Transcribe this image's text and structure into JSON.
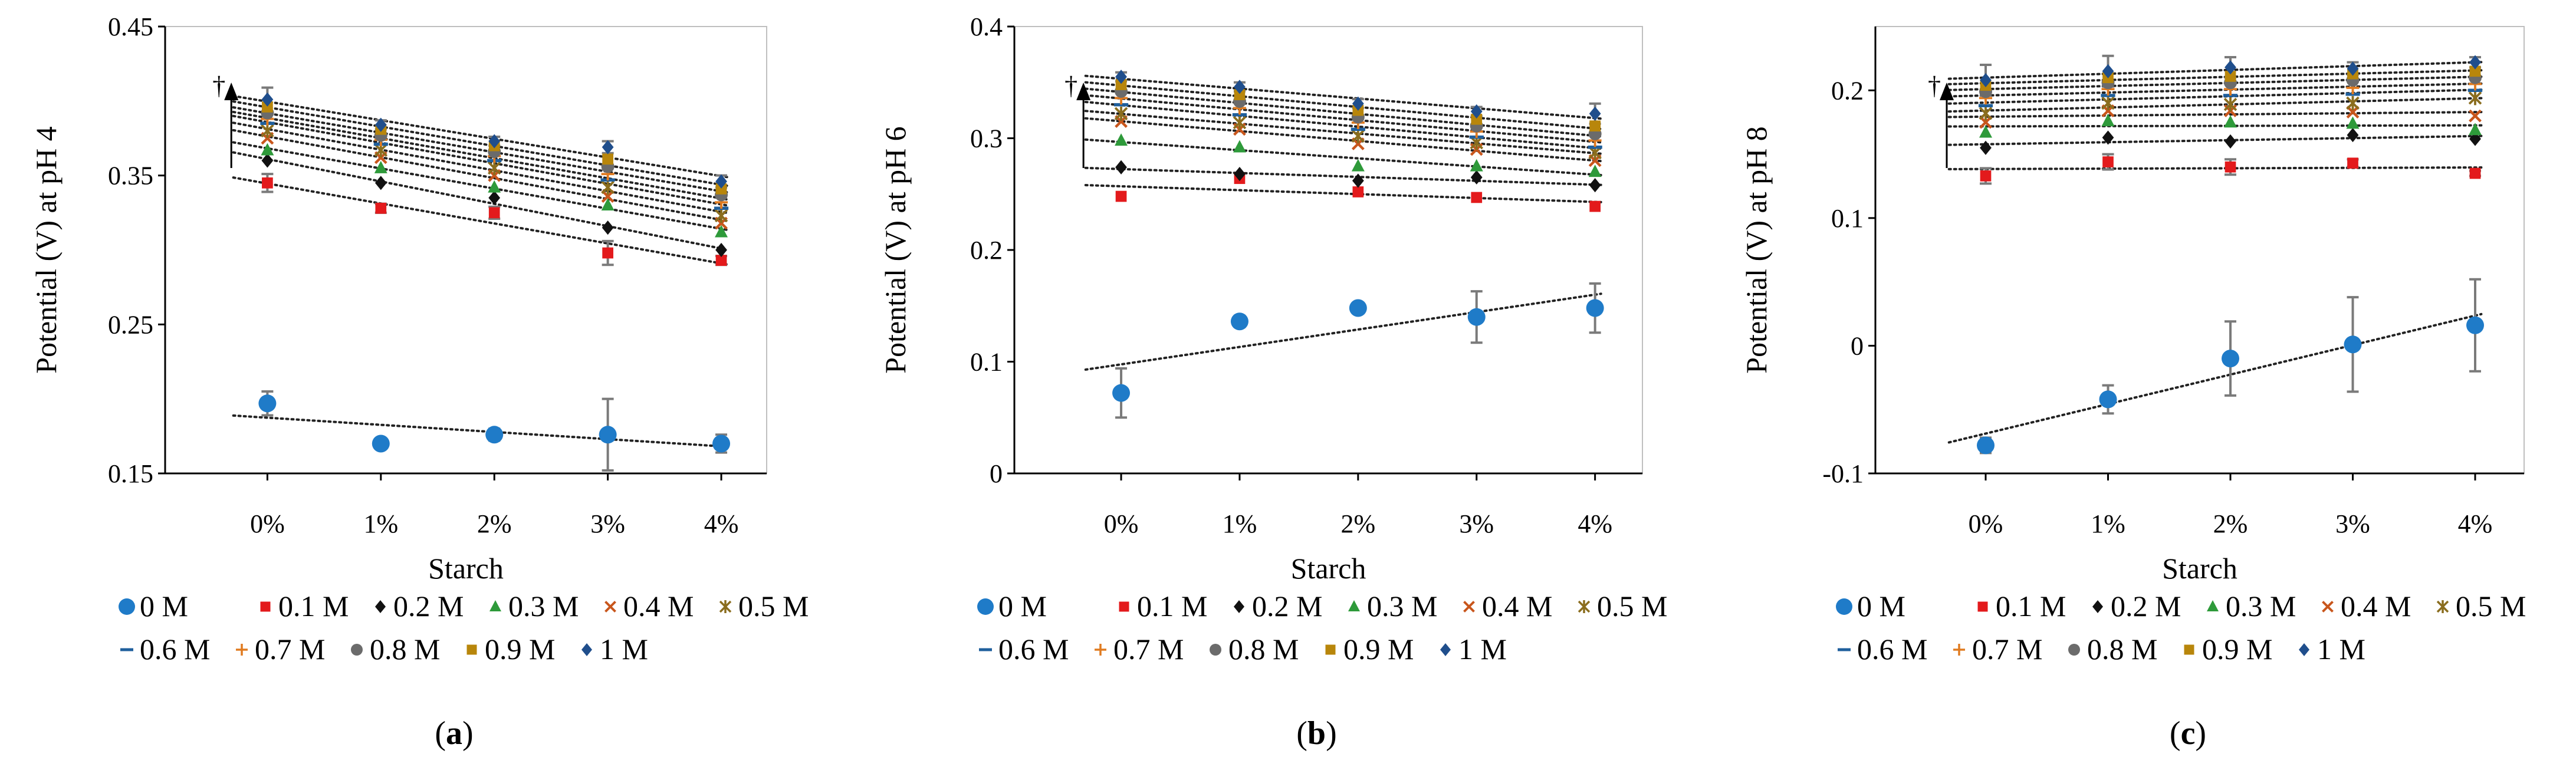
{
  "figure": {
    "legend_labels": [
      "0 M",
      "0.1 M",
      "0.2 M",
      "0.3 M",
      "0.4 M",
      "0.5 M",
      "0.6 M",
      "0.7 M",
      "0.8 M",
      "0.9 M",
      "1 M"
    ],
    "dagger": "†"
  },
  "series_style": [
    {
      "name": "0 M",
      "color": "#1f7bc8",
      "marker": "circle"
    },
    {
      "name": "0.1 M",
      "color": "#e31a1c",
      "marker": "square"
    },
    {
      "name": "0.2 M",
      "color": "#111111",
      "marker": "diamond"
    },
    {
      "name": "0.3 M",
      "color": "#2e9a3a",
      "marker": "triangle"
    },
    {
      "name": "0.4 M",
      "color": "#c8561c",
      "marker": "x"
    },
    {
      "name": "0.5 M",
      "color": "#8a6d1e",
      "marker": "star"
    },
    {
      "name": "0.6 M",
      "color": "#1f5f9c",
      "marker": "dash"
    },
    {
      "name": "0.7 M",
      "color": "#e07b20",
      "marker": "plus"
    },
    {
      "name": "0.8 M",
      "color": "#6b6b6b",
      "marker": "circle"
    },
    {
      "name": "0.9 M",
      "color": "#b8860b",
      "marker": "square"
    },
    {
      "name": "1 M",
      "color": "#1f4e8c",
      "marker": "diamond"
    }
  ],
  "chart_data": [
    {
      "type": "scatter",
      "panel": "(a)",
      "caption": {
        "open": "(",
        "letter": "a",
        "close": ")"
      },
      "title": "",
      "xlabel": "Starch",
      "ylabel": "Potential (V) at pH 4",
      "categories": [
        "0%",
        "1%",
        "2%",
        "3%",
        "4%"
      ],
      "ylim": [
        0.15,
        0.45
      ],
      "yticks": [
        0.15,
        0.25,
        0.35,
        0.45
      ],
      "ytick_labels": [
        "0.15",
        "0.25",
        "0.35",
        "0.45"
      ],
      "trendlines": true,
      "series": [
        {
          "name": "0 M",
          "values": [
            0.197,
            0.17,
            0.176,
            0.176,
            0.17
          ],
          "errors": [
            0.008,
            0.003,
            0.004,
            0.024,
            0.006
          ]
        },
        {
          "name": "0.1 M",
          "values": [
            0.345,
            0.328,
            0.325,
            0.298,
            0.293
          ],
          "errors": [
            0.006,
            0.003,
            0.004,
            0.008,
            0.003
          ]
        },
        {
          "name": "0.2 M",
          "values": [
            0.36,
            0.345,
            0.335,
            0.315,
            0.3
          ]
        },
        {
          "name": "0.3 M",
          "values": [
            0.367,
            0.355,
            0.342,
            0.33,
            0.312
          ]
        },
        {
          "name": "0.4 M",
          "values": [
            0.375,
            0.362,
            0.35,
            0.336,
            0.318
          ]
        },
        {
          "name": "0.5 M",
          "values": [
            0.38,
            0.367,
            0.355,
            0.342,
            0.323
          ]
        },
        {
          "name": "0.6 M",
          "values": [
            0.385,
            0.371,
            0.36,
            0.347,
            0.328
          ]
        },
        {
          "name": "0.7 M",
          "values": [
            0.388,
            0.374,
            0.363,
            0.351,
            0.332
          ]
        },
        {
          "name": "0.8 M",
          "values": [
            0.392,
            0.377,
            0.366,
            0.356,
            0.337
          ]
        },
        {
          "name": "0.9 M",
          "values": [
            0.396,
            0.381,
            0.37,
            0.361,
            0.341
          ]
        },
        {
          "name": "1 M",
          "values": [
            0.401,
            0.384,
            0.373,
            0.369,
            0.346
          ],
          "errors": [
            0.008,
            0.003,
            0.003,
            0.004,
            0.004
          ]
        }
      ]
    },
    {
      "type": "scatter",
      "panel": "(b)",
      "caption": {
        "open": "(",
        "letter": "b",
        "close": ")"
      },
      "title": "",
      "xlabel": "Starch",
      "ylabel": "Potential (V) at pH 6",
      "categories": [
        "0%",
        "1%",
        "2%",
        "3%",
        "4%"
      ],
      "ylim": [
        0,
        0.4
      ],
      "yticks": [
        0,
        0.1,
        0.2,
        0.3,
        0.4
      ],
      "ytick_labels": [
        "0",
        "0.1",
        "0.2",
        "0.3",
        "0.4"
      ],
      "trendlines": true,
      "series": [
        {
          "name": "0 M",
          "values": [
            0.072,
            0.136,
            0.148,
            0.14,
            0.148
          ],
          "errors": [
            0.022,
            0.005,
            0.004,
            0.023,
            0.022
          ]
        },
        {
          "name": "0.1 M",
          "values": [
            0.248,
            0.264,
            0.252,
            0.247,
            0.239
          ]
        },
        {
          "name": "0.2 M",
          "values": [
            0.274,
            0.268,
            0.262,
            0.265,
            0.258
          ]
        },
        {
          "name": "0.3 M",
          "values": [
            0.298,
            0.292,
            0.275,
            0.275,
            0.27
          ]
        },
        {
          "name": "0.4 M",
          "values": [
            0.315,
            0.308,
            0.295,
            0.29,
            0.28
          ]
        },
        {
          "name": "0.5 M",
          "values": [
            0.322,
            0.314,
            0.302,
            0.296,
            0.287
          ]
        },
        {
          "name": "0.6 M",
          "values": [
            0.33,
            0.321,
            0.308,
            0.301,
            0.292
          ]
        },
        {
          "name": "0.7 M",
          "values": [
            0.336,
            0.327,
            0.314,
            0.306,
            0.298
          ]
        },
        {
          "name": "0.8 M",
          "values": [
            0.342,
            0.333,
            0.319,
            0.311,
            0.304
          ]
        },
        {
          "name": "0.9 M",
          "values": [
            0.348,
            0.339,
            0.325,
            0.317,
            0.311
          ]
        },
        {
          "name": "1 M",
          "values": [
            0.355,
            0.346,
            0.331,
            0.324,
            0.322
          ],
          "errors": [
            0.004,
            0.004,
            0.004,
            0.004,
            0.009
          ]
        }
      ]
    },
    {
      "type": "scatter",
      "panel": "(c)",
      "caption": {
        "open": "(",
        "letter": "c",
        "close": ")"
      },
      "title": "",
      "xlabel": "Starch",
      "ylabel": "Potential (V) at pH 8",
      "categories": [
        "0%",
        "1%",
        "2%",
        "3%",
        "4%"
      ],
      "ylim": [
        -0.1,
        0.25
      ],
      "yticks": [
        -0.1,
        0,
        0.1,
        0.2
      ],
      "ytick_labels": [
        "-0.1",
        "0",
        "0.1",
        "0.2"
      ],
      "trendlines": true,
      "series": [
        {
          "name": "0 M",
          "values": [
            -0.078,
            -0.042,
            -0.01,
            0.001,
            0.016
          ],
          "errors": [
            0.006,
            0.011,
            0.029,
            0.037,
            0.036
          ]
        },
        {
          "name": "0.1 M",
          "values": [
            0.133,
            0.144,
            0.14,
            0.143,
            0.135
          ],
          "errors": [
            0.006,
            0.006,
            0.006,
            0.003,
            0.002
          ]
        },
        {
          "name": "0.2 M",
          "values": [
            0.155,
            0.163,
            0.16,
            0.165,
            0.162
          ]
        },
        {
          "name": "0.3 M",
          "values": [
            0.167,
            0.176,
            0.175,
            0.174,
            0.169
          ]
        },
        {
          "name": "0.4 M",
          "values": [
            0.175,
            0.184,
            0.184,
            0.183,
            0.18
          ]
        },
        {
          "name": "0.5 M",
          "values": [
            0.182,
            0.19,
            0.189,
            0.19,
            0.194
          ]
        },
        {
          "name": "0.6 M",
          "values": [
            0.188,
            0.196,
            0.196,
            0.197,
            0.2
          ]
        },
        {
          "name": "0.7 M",
          "values": [
            0.194,
            0.201,
            0.201,
            0.202,
            0.205
          ]
        },
        {
          "name": "0.8 M",
          "values": [
            0.199,
            0.206,
            0.206,
            0.208,
            0.21
          ]
        },
        {
          "name": "0.9 M",
          "values": [
            0.204,
            0.21,
            0.211,
            0.213,
            0.215
          ]
        },
        {
          "name": "1 M",
          "values": [
            0.208,
            0.215,
            0.218,
            0.217,
            0.222
          ],
          "errors": [
            0.012,
            0.012,
            0.008,
            0.005,
            0.004
          ]
        }
      ]
    }
  ]
}
